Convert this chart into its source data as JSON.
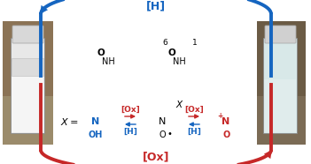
{
  "blue": "#1565C0",
  "red": "#C62828",
  "black": "#000000",
  "bg": "#FFFFFF",
  "dark_gray": "#555555",
  "top_label": "[H]",
  "bot_label": "[Ox]",
  "ox_label": "[Ox]",
  "h_label": "[H]",
  "x_eq": "X =",
  "oh_label": "OH",
  "n_label": "N",
  "nh_label": "NH",
  "o_label": "O",
  "odot_label": "O",
  "x_label": "X",
  "sub6": "6",
  "sub1": "1"
}
